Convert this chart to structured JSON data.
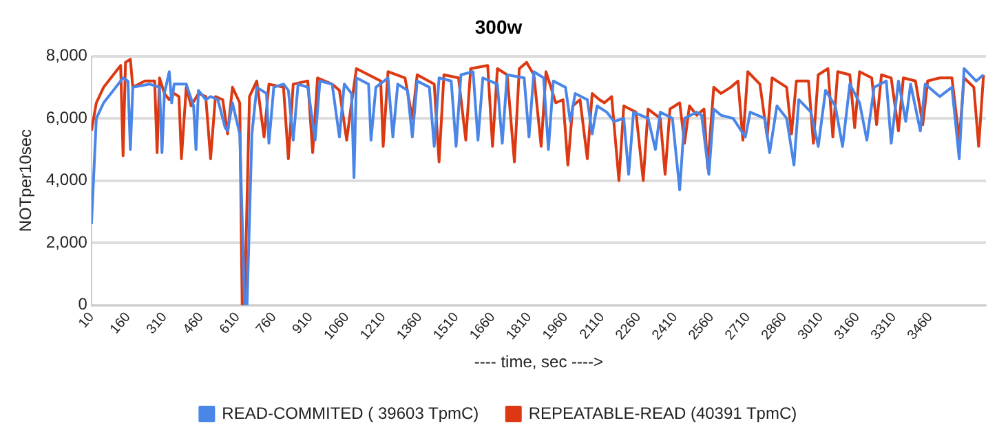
{
  "chart_data": {
    "type": "line",
    "title": "300w",
    "xlabel": "---- time, sec ---->",
    "ylabel": "NOTper10sec",
    "xlim": [
      10,
      3690
    ],
    "xticks": [
      10,
      160,
      310,
      460,
      610,
      760,
      910,
      1060,
      1210,
      1360,
      1510,
      1660,
      1810,
      1960,
      2110,
      2260,
      2410,
      2560,
      2710,
      2860,
      3010,
      3160,
      3310,
      3460
    ],
    "ylim": [
      0,
      8000
    ],
    "yticks": [
      {
        "value": 0,
        "label": "0"
      },
      {
        "value": 2000,
        "label": "2,000"
      },
      {
        "value": 4000,
        "label": "4,000"
      },
      {
        "value": 6000,
        "label": "6,000"
      },
      {
        "value": 8000,
        "label": "8,000"
      }
    ],
    "grid": "y",
    "legend": "bottom",
    "marker": "none",
    "line_style": "solid",
    "series": [
      {
        "name": "READ-COMMITED ( 39603 TpmC)",
        "color": "#4a86e8",
        "x": [
          10,
          30,
          60,
          100,
          140,
          160,
          170,
          180,
          250,
          290,
          300,
          310,
          330,
          340,
          350,
          400,
          430,
          440,
          450,
          480,
          500,
          530,
          560,
          570,
          590,
          620,
          640,
          650,
          670,
          690,
          730,
          740,
          760,
          800,
          820,
          840,
          860,
          900,
          930,
          950,
          1000,
          1030,
          1050,
          1080,
          1090,
          1100,
          1150,
          1160,
          1180,
          1230,
          1250,
          1270,
          1310,
          1330,
          1350,
          1400,
          1420,
          1440,
          1490,
          1510,
          1530,
          1580,
          1600,
          1620,
          1680,
          1700,
          1720,
          1790,
          1810,
          1830,
          1870,
          1890,
          1910,
          1960,
          1980,
          2000,
          2050,
          2070,
          2090,
          2130,
          2160,
          2200,
          2220,
          2240,
          2300,
          2330,
          2350,
          2400,
          2430,
          2450,
          2500,
          2520,
          2550,
          2570,
          2600,
          2650,
          2700,
          2720,
          2780,
          2800,
          2830,
          2870,
          2900,
          2920,
          2970,
          3000,
          3030,
          3070,
          3100,
          3130,
          3170,
          3200,
          3230,
          3280,
          3300,
          3330,
          3360,
          3380,
          3420,
          3440,
          3500,
          3550,
          3580,
          3600,
          3650,
          3680
        ],
        "values": [
          2600,
          6000,
          6500,
          6900,
          7300,
          7200,
          5000,
          7000,
          7100,
          7000,
          4900,
          6800,
          7500,
          6500,
          7100,
          7100,
          6400,
          5000,
          6900,
          6600,
          6700,
          6600,
          5700,
          5600,
          6500,
          5500,
          0,
          0,
          5500,
          7000,
          6800,
          5200,
          7000,
          7100,
          6900,
          5300,
          7100,
          7000,
          5300,
          7200,
          7100,
          5400,
          7100,
          6800,
          4100,
          7300,
          7100,
          5300,
          7000,
          7300,
          5400,
          7100,
          6900,
          5400,
          7200,
          7000,
          5100,
          7300,
          7200,
          5100,
          7400,
          7500,
          5300,
          7300,
          7100,
          5200,
          7400,
          7300,
          5400,
          7500,
          7300,
          5000,
          7200,
          7000,
          5900,
          6800,
          6600,
          5500,
          6400,
          6200,
          5900,
          6000,
          4200,
          6200,
          6000,
          5000,
          6200,
          6000,
          3700,
          6000,
          6200,
          6100,
          4200,
          6300,
          6100,
          6000,
          5400,
          6200,
          6000,
          4900,
          6400,
          6000,
          4500,
          6600,
          6200,
          5100,
          6900,
          6400,
          5100,
          7100,
          6500,
          5300,
          7000,
          7200,
          5200,
          7200,
          5900,
          7100,
          5600,
          7100,
          6700,
          7000,
          4700,
          7600,
          7200,
          7400
        ]
      },
      {
        "name": "REPEATABLE-READ (40391 TpmC)",
        "color": "#dc3912",
        "x": [
          10,
          30,
          60,
          100,
          130,
          140,
          150,
          170,
          180,
          230,
          270,
          280,
          290,
          310,
          330,
          350,
          370,
          380,
          400,
          420,
          450,
          480,
          500,
          520,
          550,
          570,
          590,
          620,
          630,
          640,
          660,
          690,
          720,
          740,
          800,
          820,
          840,
          900,
          920,
          940,
          1000,
          1030,
          1060,
          1080,
          1100,
          1150,
          1200,
          1210,
          1230,
          1300,
          1330,
          1350,
          1420,
          1440,
          1460,
          1520,
          1550,
          1570,
          1640,
          1660,
          1680,
          1720,
          1750,
          1770,
          1800,
          1830,
          1860,
          1880,
          1920,
          1950,
          1970,
          1990,
          2020,
          2050,
          2070,
          2100,
          2120,
          2150,
          2180,
          2200,
          2250,
          2280,
          2300,
          2350,
          2370,
          2390,
          2430,
          2450,
          2470,
          2500,
          2530,
          2545,
          2570,
          2600,
          2640,
          2670,
          2690,
          2710,
          2760,
          2790,
          2810,
          2870,
          2890,
          2910,
          2960,
          2980,
          3000,
          3040,
          3060,
          3080,
          3130,
          3150,
          3170,
          3220,
          3240,
          3260,
          3300,
          3330,
          3350,
          3400,
          3430,
          3450,
          3500,
          3550,
          3580,
          3600,
          3640,
          3660,
          3680
        ],
        "values": [
          5600,
          6500,
          7000,
          7400,
          7700,
          4800,
          7800,
          7900,
          7000,
          7200,
          7200,
          4900,
          7300,
          6800,
          6600,
          6800,
          6700,
          4700,
          7000,
          6400,
          6800,
          6700,
          4700,
          6700,
          6600,
          5500,
          7000,
          6500,
          0,
          0,
          6700,
          7200,
          5400,
          7100,
          7000,
          4700,
          7100,
          7200,
          4900,
          7300,
          7100,
          6900,
          5300,
          6500,
          7600,
          7400,
          7200,
          5100,
          7500,
          7300,
          6000,
          7400,
          7100,
          4600,
          7400,
          7300,
          5300,
          7600,
          7700,
          5100,
          7600,
          7400,
          4600,
          7600,
          7800,
          7400,
          5100,
          7500,
          6500,
          6600,
          4500,
          6400,
          6600,
          4700,
          6800,
          6600,
          6500,
          6700,
          4000,
          6400,
          6200,
          4000,
          6300,
          6000,
          4200,
          6300,
          6500,
          5200,
          6400,
          6100,
          6300,
          4400,
          7000,
          6800,
          7000,
          7200,
          5300,
          7500,
          7100,
          5400,
          7300,
          7000,
          5500,
          7200,
          7200,
          5200,
          7400,
          7600,
          5400,
          7500,
          7400,
          5700,
          7500,
          7300,
          5800,
          7400,
          7300,
          5600,
          7300,
          7200,
          5800,
          7200,
          7300,
          7300,
          5300,
          7300,
          7000,
          5100,
          7400
        ]
      }
    ]
  }
}
